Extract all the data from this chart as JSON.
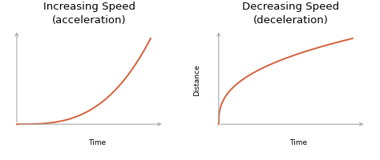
{
  "title_left": "Increasing Speed\n(acceleration)",
  "title_right": "Decreasing Speed\n(deceleration)",
  "xlabel": "Time",
  "ylabel": "Distance",
  "curve_color": "#d4603a",
  "curve_linewidth": 1.4,
  "bg_color": "#ffffff",
  "title_fontsize": 9.5,
  "axis_label_fontsize": 6.5,
  "axis_color": "#aaaaaa",
  "accel_power": 3.0,
  "decel_power": 0.38
}
